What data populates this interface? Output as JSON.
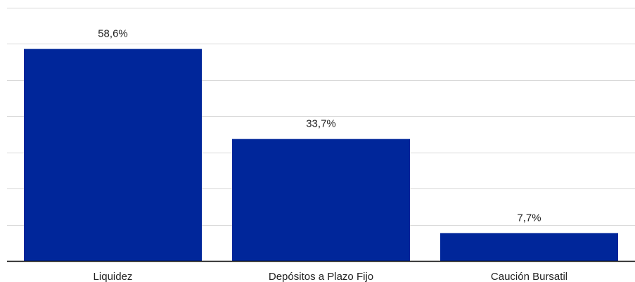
{
  "chart_data": {
    "type": "bar",
    "categories": [
      "Liquidez",
      "Depósitos a Plazo Fijo",
      "Caución Bursatil"
    ],
    "values": [
      58.6,
      33.7,
      7.7
    ],
    "data_labels": [
      "58,6%",
      "33,7%",
      "7,7%"
    ],
    "title": "",
    "xlabel": "",
    "ylabel": "",
    "ylim": [
      0,
      70
    ],
    "grid": true,
    "y_tick_labels_visible": false,
    "legend": "none",
    "bar_color": "#00269a",
    "grid_color": "#d9d9d9"
  }
}
